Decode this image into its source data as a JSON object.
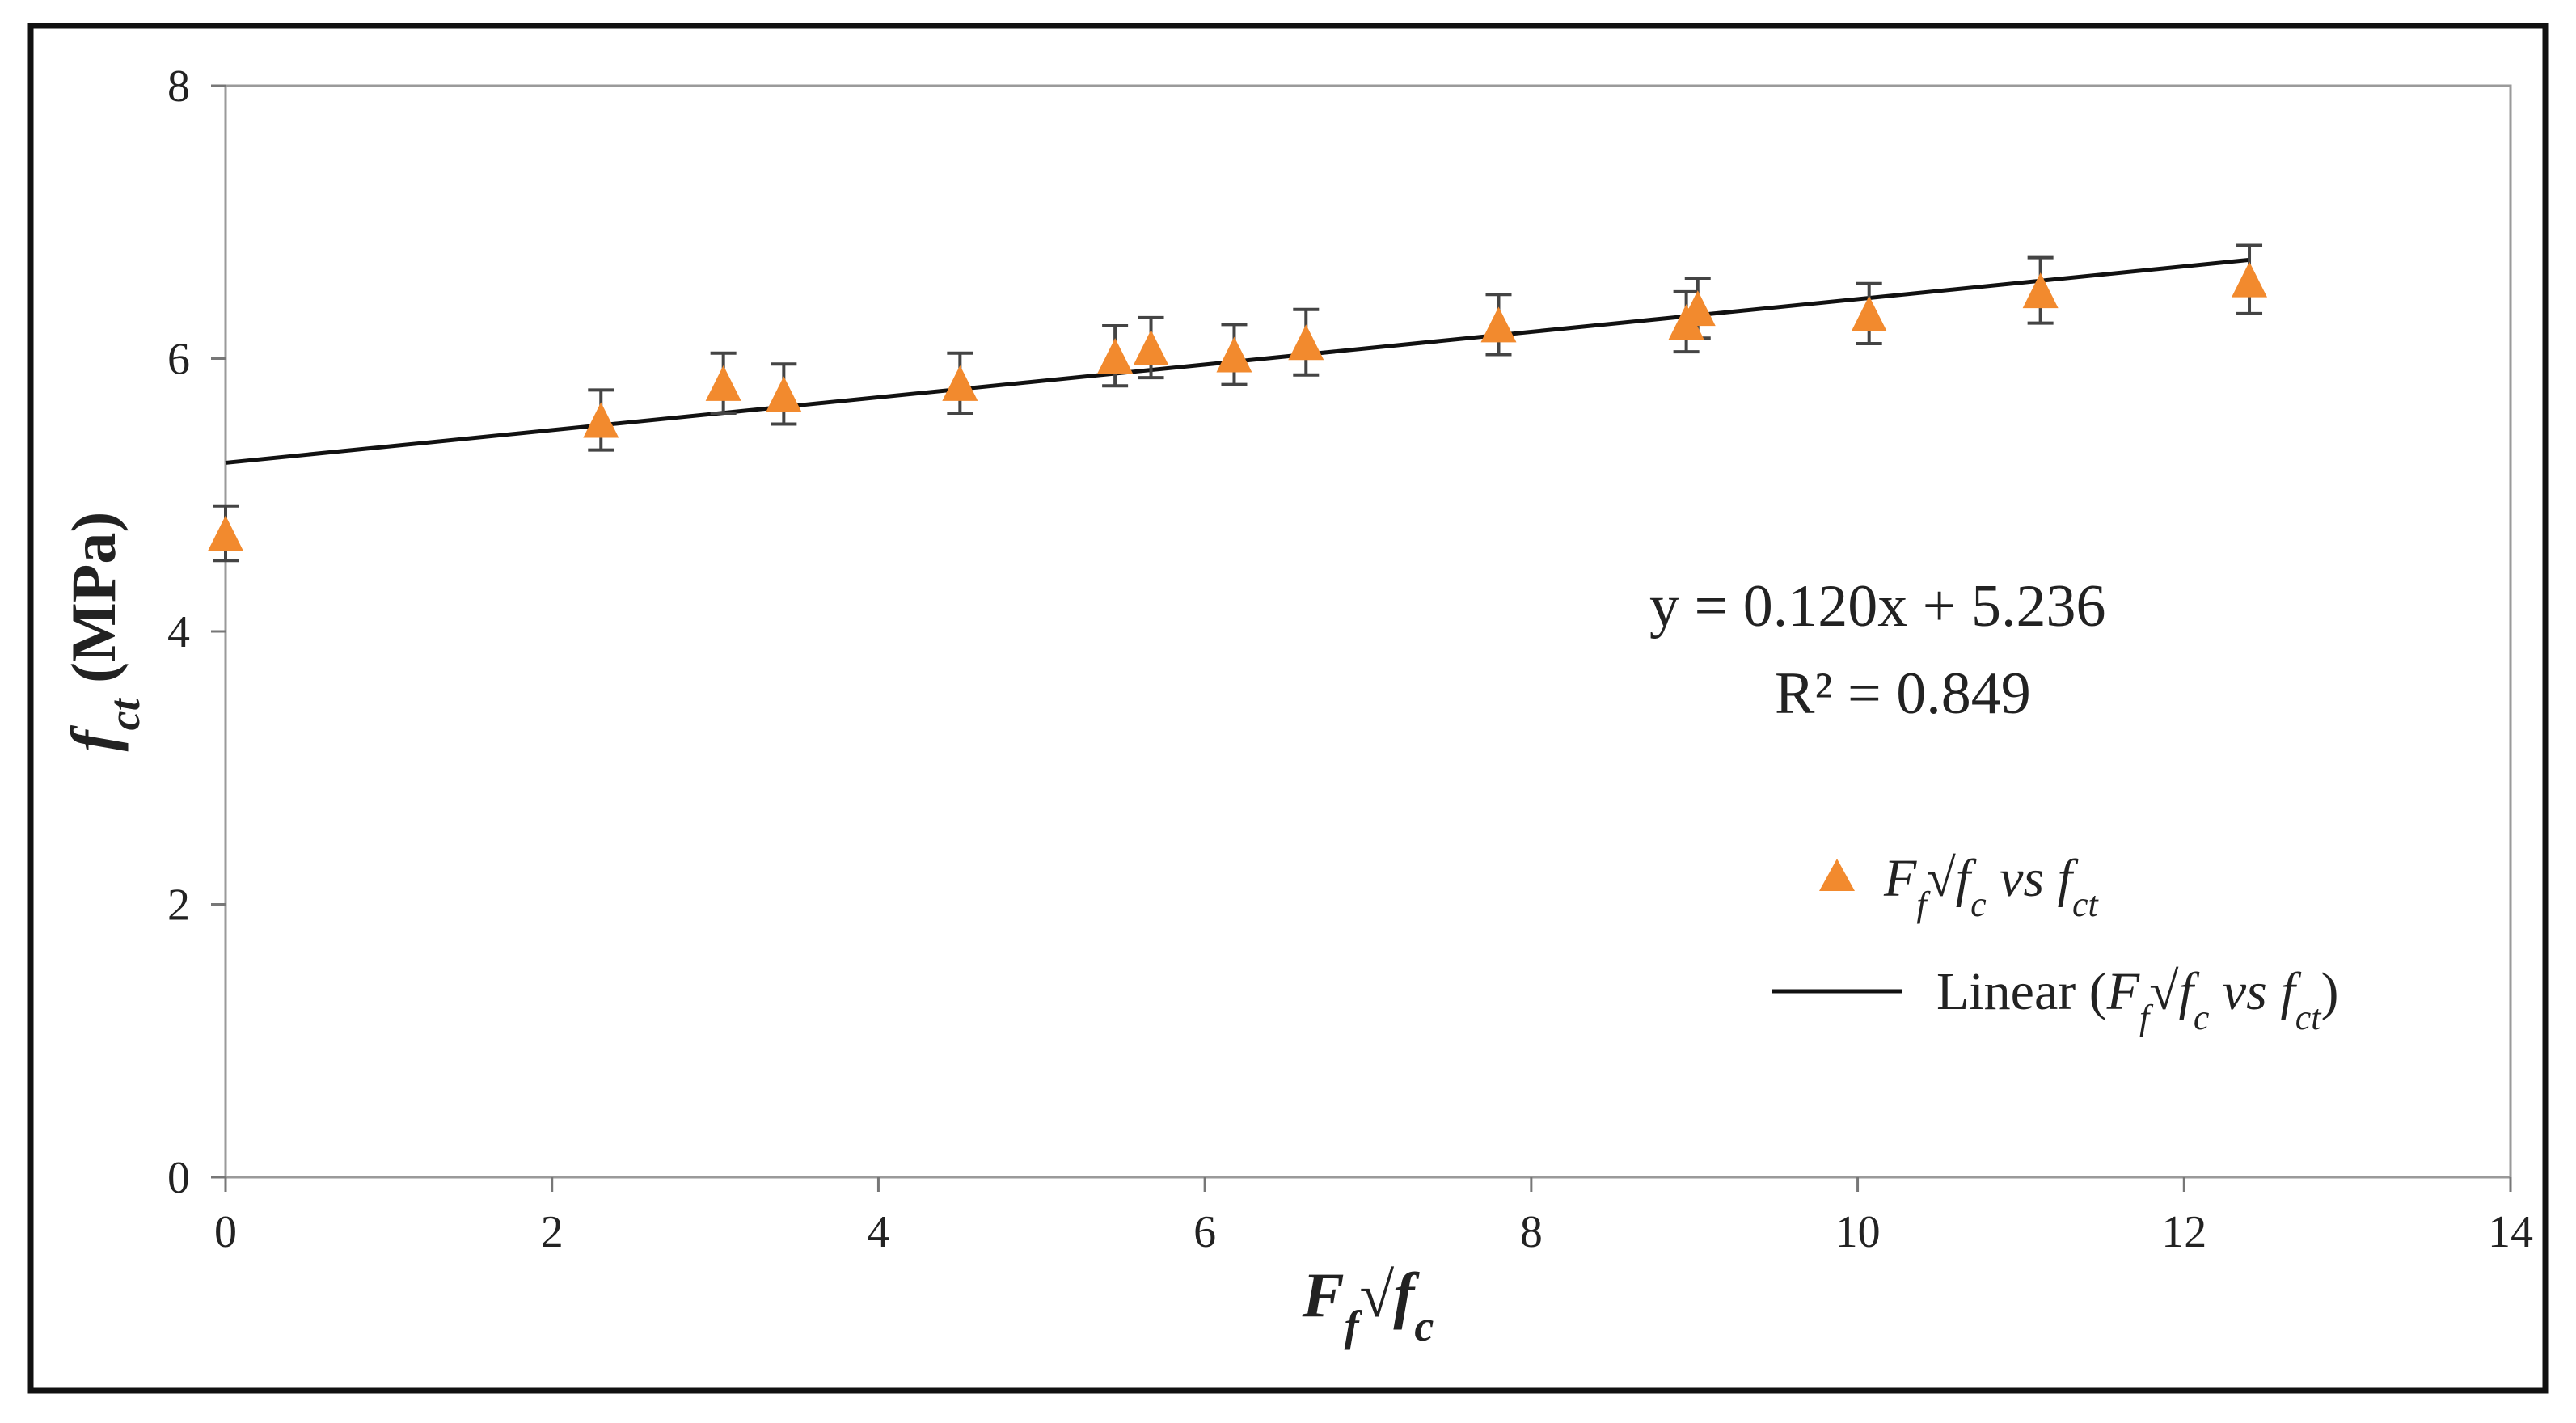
{
  "chart_data": {
    "type": "scatter",
    "xlim": [
      0,
      14
    ],
    "ylim": [
      0,
      8
    ],
    "xticks": [
      "0",
      "2",
      "4",
      "6",
      "8",
      "10",
      "12",
      "14"
    ],
    "yticks": [
      "0",
      "2",
      "4",
      "6",
      "8"
    ],
    "xlabel": {
      "main": "F",
      "sub": "f",
      "rest": "√f",
      "sub2": "c"
    },
    "ylabel": {
      "main": "f",
      "sub": "ct",
      "rest": " (MPa)"
    },
    "grid": false,
    "legend_position": "right",
    "marker_color": "#F28A2E",
    "error_bar_color": "#444444",
    "trendline_color": "#111111",
    "series": [
      {
        "name": "F_f√f_c vs f_ct",
        "type": "scatter",
        "marker": "triangle",
        "points": [
          {
            "x": 0.0,
            "y": 4.72,
            "err": 0.2
          },
          {
            "x": 2.3,
            "y": 5.55,
            "err": 0.22
          },
          {
            "x": 3.05,
            "y": 5.82,
            "err": 0.22
          },
          {
            "x": 3.42,
            "y": 5.74,
            "err": 0.22
          },
          {
            "x": 4.5,
            "y": 5.82,
            "err": 0.22
          },
          {
            "x": 5.45,
            "y": 6.02,
            "err": 0.22
          },
          {
            "x": 5.67,
            "y": 6.08,
            "err": 0.22
          },
          {
            "x": 6.18,
            "y": 6.03,
            "err": 0.22
          },
          {
            "x": 6.62,
            "y": 6.12,
            "err": 0.24
          },
          {
            "x": 7.8,
            "y": 6.25,
            "err": 0.22
          },
          {
            "x": 8.95,
            "y": 6.27,
            "err": 0.22
          },
          {
            "x": 9.02,
            "y": 6.37,
            "err": 0.22
          },
          {
            "x": 10.07,
            "y": 6.33,
            "err": 0.22
          },
          {
            "x": 11.12,
            "y": 6.5,
            "err": 0.24
          },
          {
            "x": 12.4,
            "y": 6.58,
            "err": 0.25
          }
        ]
      }
    ],
    "trendline": {
      "name": "Linear (F_f√f_c vs f_ct)",
      "slope": 0.12,
      "intercept": 5.236,
      "x_range": [
        0,
        12.4
      ]
    },
    "annotations": {
      "equation": "y = 0.120x + 5.236",
      "r_squared": "R² = 0.849"
    },
    "legend": {
      "marker_label": {
        "a": "F",
        "a_sub": "f",
        "b": "√f",
        "b_sub": "c",
        "c": " vs f",
        "c_sub": "ct"
      },
      "line_label": {
        "pre": "Linear (",
        "a": "F",
        "a_sub": "f",
        "b": "√f",
        "b_sub": "c",
        "c": " vs f",
        "c_sub": "ct",
        "post": ")"
      }
    }
  }
}
